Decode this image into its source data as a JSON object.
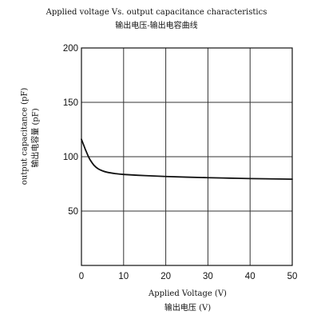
{
  "chart_data": {
    "type": "line",
    "title": "Applied voltage Vs. output capacitance characteristics",
    "subtitle": "输出电压-输出电容曲线",
    "xlabel": "Applied Voltage (V)",
    "xlabel_cn": "输出电压 (V)",
    "ylabel": "output capacitance (pF)",
    "ylabel_cn": "输出电容量 (pF)",
    "xlim": [
      0,
      50
    ],
    "ylim": [
      0,
      200
    ],
    "x_ticks": [
      0,
      10,
      20,
      30,
      40,
      50
    ],
    "y_ticks": [
      50,
      100,
      150,
      200
    ],
    "grid": true,
    "line_color": "#111111",
    "series": [
      {
        "x": [
          0,
          0.5,
          1,
          1.5,
          2,
          3,
          4,
          5,
          6,
          8,
          10,
          15,
          20,
          25,
          30,
          35,
          40,
          45,
          50
        ],
        "y": [
          116,
          111,
          106,
          101.5,
          97.5,
          92,
          88.8,
          87,
          85.8,
          84.5,
          83.7,
          82.6,
          81.8,
          81.2,
          80.7,
          80.3,
          79.9,
          79.6,
          79.3
        ]
      }
    ]
  }
}
